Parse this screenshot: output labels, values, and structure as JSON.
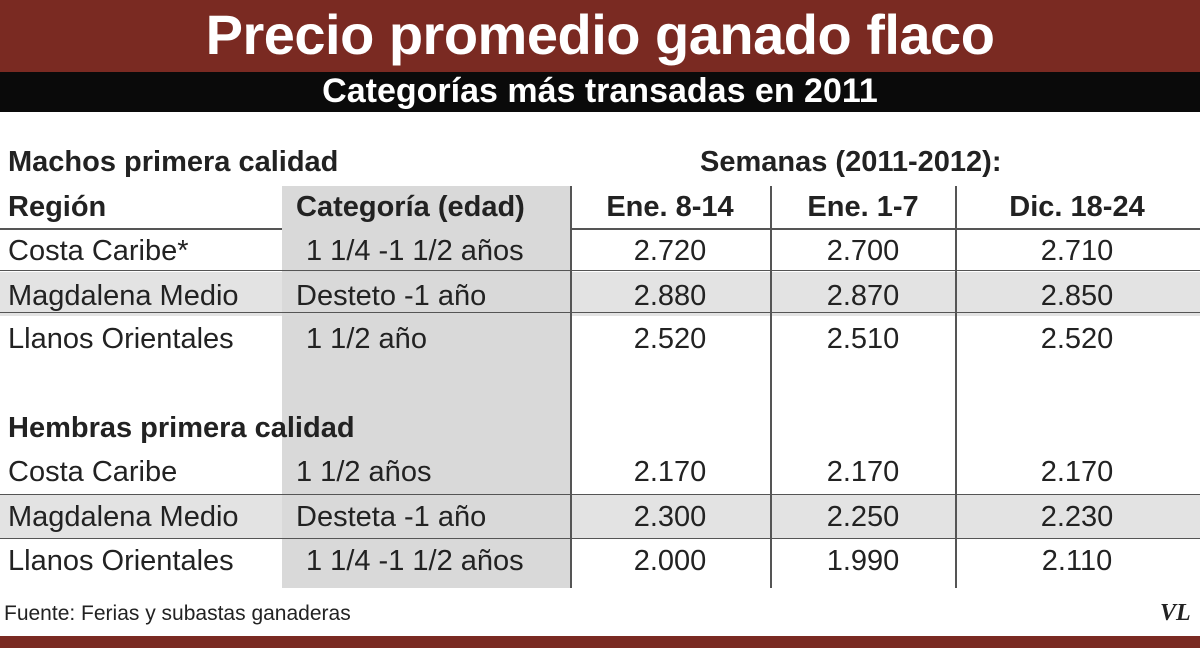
{
  "chart_data": {
    "type": "table",
    "title": "Precio promedio ganado flaco",
    "subtitle": "Categorías más transadas en 2011",
    "weeks_label": "Semanas (2011-2012):",
    "headers": {
      "region": "Región",
      "categoria": "Categoría (edad)",
      "weeks": [
        "Ene. 8-14",
        "Ene. 1-7",
        "Dic. 18-24"
      ]
    },
    "sections": [
      {
        "name": "Machos primera calidad",
        "rows": [
          {
            "region": "Costa Caribe*",
            "categoria": "1 1/4 -1 1/2  años",
            "values": [
              "2.720",
              "2.700",
              "2.710"
            ]
          },
          {
            "region": "Magdalena Medio",
            "categoria": "Desteto -1 año",
            "values": [
              "2.880",
              "2.870",
              "2.850"
            ]
          },
          {
            "region": "Llanos Orientales",
            "categoria": "1 1/2 año",
            "values": [
              "2.520",
              "2.510",
              "2.520"
            ]
          }
        ]
      },
      {
        "name": "Hembras primera calidad",
        "rows": [
          {
            "region": "Costa Caribe",
            "categoria": "1 1/2  años",
            "values": [
              "2.170",
              "2.170",
              "2.170"
            ]
          },
          {
            "region": "Magdalena Medio",
            "categoria": "Desteta -1 año",
            "values": [
              "2.300",
              "2.250",
              "2.230"
            ]
          },
          {
            "region": "Llanos Orientales",
            "categoria": "1 1/4 -1 1/2  años",
            "values": [
              "2.000",
              "1.990",
              "2.110"
            ]
          }
        ]
      }
    ],
    "source": "Fuente:  Ferias y subastas ganaderas",
    "logo_text": "VL",
    "colors": {
      "title_bg": "#7a2a22",
      "subtitle_bg": "#0a0a0a",
      "shade": "#d9d9d9",
      "row_shade": "#e3e3e3"
    }
  }
}
